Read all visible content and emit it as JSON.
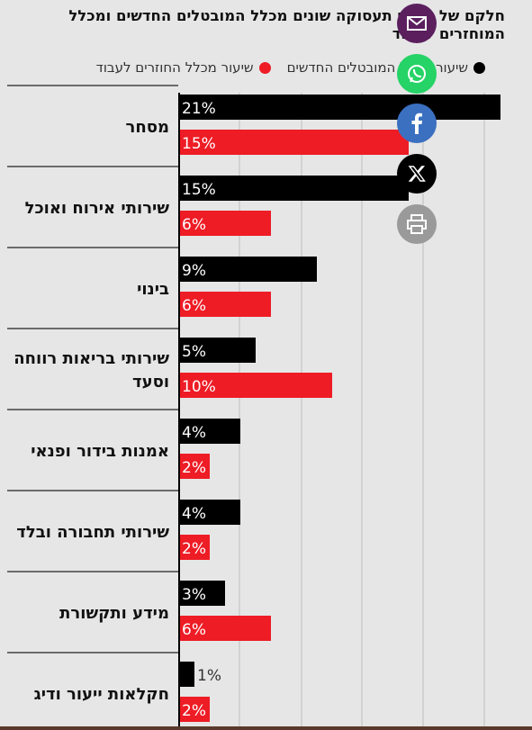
{
  "title": "חלקם של מגזרי תעסוקה שונים מכלל המובטלים החדשים ומכלל המוחזרים לעבוד",
  "legend": [
    {
      "label": "שיעור מכלל המובטלים החדשים",
      "color": "#000000"
    },
    {
      "label": "שיעור מכלל החוזרים לעבוד",
      "color": "#ee1c25"
    }
  ],
  "share_icons": [
    {
      "name": "email-icon",
      "color": "#5b1f5e"
    },
    {
      "name": "whatsapp-icon",
      "color": "#25d366"
    },
    {
      "name": "facebook-icon",
      "color": "#3b6fc0"
    },
    {
      "name": "x-icon",
      "color": "#000000"
    },
    {
      "name": "print-icon",
      "color": "#9a9a9a"
    }
  ],
  "chart_data": {
    "type": "bar",
    "orientation": "horizontal",
    "categories": [
      "מסחר",
      "שירותי אירוח ואוכל",
      "בינוי",
      "שירותי בריאות רווחה וסעד",
      "אמנות בידור ופנאי",
      "שירותי תחבורה ובלד",
      "מידע ותקשורת",
      "חקלאות ייעור ודיג"
    ],
    "series": [
      {
        "name": "שיעור מכלל המובטלים החדשים",
        "color": "#000000",
        "values": [
          21,
          15,
          9,
          5,
          4,
          4,
          3,
          1
        ],
        "labels": [
          "21%",
          "15%",
          "9%",
          "5%",
          "4%",
          "4%",
          "3%",
          "1%"
        ]
      },
      {
        "name": "שיעור מכלל החוזרים לעבוד",
        "color": "#ee1c25",
        "values": [
          15,
          6,
          6,
          10,
          2,
          2,
          6,
          2
        ],
        "labels": [
          "15%",
          "6%",
          "6%",
          "10%",
          "2%",
          "2%",
          "6%",
          "2%"
        ]
      }
    ],
    "xlim": [
      0,
      21
    ],
    "grid": true
  }
}
